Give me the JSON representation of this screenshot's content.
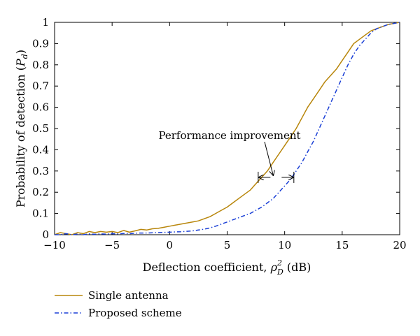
{
  "chart_data": {
    "type": "line",
    "xlabel_main": "Deflection coefficient, ",
    "xlabel_rho": "ρ",
    "xlabel_sub": "D",
    "xlabel_sup": "2",
    "xlabel_unit": " (dB)",
    "ylabel_main": "Probability of detection (",
    "ylabel_var": "P",
    "ylabel_sub": "d",
    "ylabel_close": ")",
    "xlim": [
      -10,
      20
    ],
    "ylim": [
      0,
      1
    ],
    "xticks": [
      -10,
      -5,
      0,
      5,
      10,
      15,
      20
    ],
    "xtick_labels": [
      "−10",
      "−5",
      "0",
      "5",
      "10",
      "15",
      "20"
    ],
    "yticks": [
      0,
      0.1,
      0.2,
      0.3,
      0.4,
      0.5,
      0.6,
      0.7,
      0.8,
      0.9,
      1
    ],
    "ytick_labels": [
      "0",
      "0.1",
      "0.2",
      "0.3",
      "0.4",
      "0.5",
      "0.6",
      "0.7",
      "0.8",
      "0.9",
      "1"
    ],
    "grid": false,
    "legend_placement": "below-left",
    "annotation": {
      "text": "Performance improvement",
      "x1": 7.7,
      "x2": 10.8,
      "y": 0.27,
      "arrow_tip": [
        9.0,
        0.28
      ]
    },
    "series": [
      {
        "name": "Single antenna",
        "color": "#b8860b",
        "style": "solid",
        "x": [
          -10,
          -9.5,
          -9,
          -8.5,
          -8,
          -7.5,
          -7,
          -6.5,
          -6,
          -5.5,
          -5,
          -4.5,
          -4,
          -3.5,
          -3,
          -2.5,
          -2,
          -1.5,
          -1,
          -0.5,
          0,
          0.5,
          1,
          1.5,
          2,
          2.5,
          3,
          3.5,
          4,
          4.5,
          5,
          5.5,
          6,
          6.5,
          7,
          7.5,
          8,
          8.5,
          9,
          9.5,
          10,
          10.5,
          11,
          11.5,
          12,
          12.5,
          13,
          13.5,
          14,
          14.5,
          15,
          15.5,
          16,
          16.5,
          17,
          17.5,
          18,
          18.5,
          19,
          19.5,
          20
        ],
        "y": [
          0,
          0.01,
          0.005,
          0,
          0.01,
          0.005,
          0.015,
          0.01,
          0.015,
          0.012,
          0.015,
          0.01,
          0.02,
          0.012,
          0.018,
          0.025,
          0.022,
          0.028,
          0.03,
          0.035,
          0.04,
          0.045,
          0.05,
          0.055,
          0.06,
          0.065,
          0.075,
          0.085,
          0.1,
          0.115,
          0.13,
          0.15,
          0.17,
          0.19,
          0.21,
          0.24,
          0.27,
          0.3,
          0.34,
          0.38,
          0.42,
          0.46,
          0.5,
          0.55,
          0.6,
          0.64,
          0.68,
          0.72,
          0.75,
          0.78,
          0.82,
          0.86,
          0.9,
          0.92,
          0.94,
          0.96,
          0.97,
          0.98,
          0.99,
          0.995,
          1
        ]
      },
      {
        "name": "Proposed scheme",
        "color": "#1a3fd6",
        "style": "dashdot",
        "x": [
          -10,
          -9.5,
          -9,
          -8.5,
          -8,
          -7.5,
          -7,
          -6.5,
          -6,
          -5.5,
          -5,
          -4.5,
          -4,
          -3.5,
          -3,
          -2.5,
          -2,
          -1.5,
          -1,
          -0.5,
          0,
          0.5,
          1,
          1.5,
          2,
          2.5,
          3,
          3.5,
          4,
          4.5,
          5,
          5.5,
          6,
          6.5,
          7,
          7.5,
          8,
          8.5,
          9,
          9.5,
          10,
          10.5,
          11,
          11.5,
          12,
          12.5,
          13,
          13.5,
          14,
          14.5,
          15,
          15.5,
          16,
          16.5,
          17,
          17.5,
          18,
          18.5,
          19,
          19.5,
          20
        ],
        "y": [
          0,
          0,
          0.005,
          0,
          0.003,
          0,
          0.004,
          0.002,
          0.004,
          0.003,
          0.005,
          0.004,
          0.006,
          0.005,
          0.007,
          0.008,
          0.008,
          0.009,
          0.01,
          0.011,
          0.012,
          0.013,
          0.014,
          0.016,
          0.018,
          0.022,
          0.026,
          0.032,
          0.04,
          0.05,
          0.06,
          0.07,
          0.08,
          0.09,
          0.1,
          0.115,
          0.13,
          0.15,
          0.17,
          0.2,
          0.23,
          0.26,
          0.3,
          0.34,
          0.39,
          0.44,
          0.5,
          0.56,
          0.62,
          0.68,
          0.74,
          0.8,
          0.85,
          0.89,
          0.92,
          0.95,
          0.97,
          0.98,
          0.99,
          0.995,
          1
        ]
      }
    ]
  }
}
